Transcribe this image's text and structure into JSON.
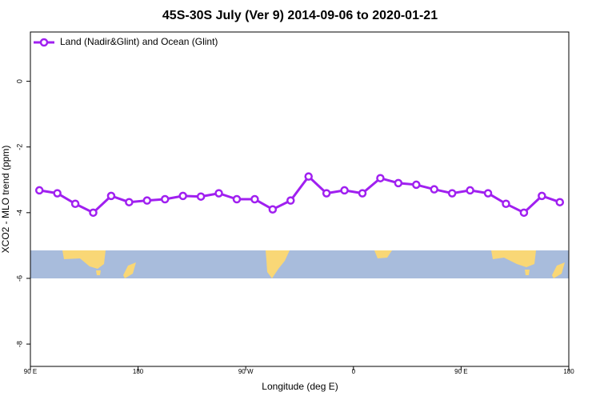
{
  "chart_data": {
    "type": "line",
    "title": "45S-30S July (Ver 9)   2014-09-06 to 2020-01-21",
    "x_label": "Longitude (deg E)",
    "y_label": "XCO2 - MLO trend (ppm)",
    "x": [
      97.5,
      112.5,
      127.5,
      142.5,
      157.5,
      172.5,
      187.5,
      202.5,
      217.5,
      232.5,
      247.5,
      262.5,
      277.5,
      292.5,
      307.5,
      322.5,
      337.5,
      352.5,
      367.5,
      382.5,
      397.5,
      412.5,
      427.5,
      442.5,
      457.5,
      472.5,
      487.5,
      502.5,
      517.5,
      532.5
    ],
    "series": [
      {
        "name": "Land (Nadir&Glint) and Ocean (Glint)",
        "color": "#a020f0",
        "values": [
          -3.32,
          -3.41,
          -3.73,
          -4.0,
          -3.49,
          -3.68,
          -3.63,
          -3.59,
          -3.49,
          -3.51,
          -3.41,
          -3.59,
          -3.59,
          -3.9,
          -3.63,
          -2.9,
          -3.41,
          -3.32,
          -3.41,
          -2.95,
          -3.1,
          -3.15,
          -3.29,
          -3.41,
          -3.32,
          -3.41,
          -3.73,
          -4.0,
          -3.49,
          -3.68
        ]
      }
    ],
    "xlim": [
      90,
      540
    ],
    "xticks": [
      {
        "value": 90,
        "label": "90 E"
      },
      {
        "value": 180,
        "label": "180"
      },
      {
        "value": 270,
        "label": "90 W"
      },
      {
        "value": 360,
        "label": "0"
      },
      {
        "value": 450,
        "label": "90 E"
      },
      {
        "value": 540,
        "label": "180"
      }
    ],
    "ylim": [
      -8.68,
      1.5
    ],
    "yticks": [
      -8,
      -6,
      -4,
      -2,
      0
    ],
    "legend": "top-left"
  }
}
